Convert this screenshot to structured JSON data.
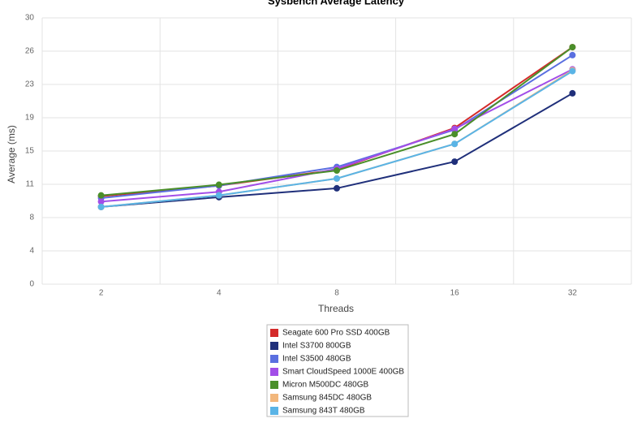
{
  "chart_data": {
    "type": "line",
    "title": "Sysbench Average Latency",
    "x_label": "Threads",
    "y_label": "Average (ms)",
    "categories": [
      "2",
      "4",
      "8",
      "16",
      "32"
    ],
    "ylim": [
      0,
      30
    ],
    "yticks": [
      0,
      {
        "value": 3.75,
        "label": "4"
      },
      {
        "value": 7.5,
        "label": "8"
      },
      {
        "value": 11.25,
        "label": "11"
      },
      15,
      {
        "value": 18.75,
        "label": "19"
      },
      {
        "value": 22.5,
        "label": "23"
      },
      {
        "value": 26.25,
        "label": "26"
      },
      30
    ],
    "grid": true,
    "series": [
      {
        "name": "Seagate 600 Pro SSD 400GB",
        "color": "#d42a2a",
        "values": [
          9.9,
          11.1,
          12.9,
          17.6,
          26.7
        ]
      },
      {
        "name": "Intel S3700 800GB",
        "color": "#1f2f7a",
        "values": [
          8.7,
          9.8,
          10.8,
          13.8,
          21.5
        ]
      },
      {
        "name": "Intel S3500 480GB",
        "color": "#5a6fe0",
        "values": [
          9.7,
          11.1,
          13.2,
          17.4,
          25.8
        ]
      },
      {
        "name": "Smart CloudSpeed 1000E 400GB",
        "color": "#a24ee8",
        "values": [
          9.3,
          10.4,
          13.0,
          17.5,
          24.2
        ]
      },
      {
        "name": "Micron M500DC 480GB",
        "color": "#4a8f2a",
        "values": [
          10.0,
          11.2,
          12.8,
          16.9,
          26.7
        ]
      },
      {
        "name": "Samsung 845DC 480GB",
        "color": "#f2b77c",
        "values": [
          8.7,
          10.0,
          11.9,
          15.8,
          24.1
        ]
      },
      {
        "name": "Samsung 843T 480GB",
        "color": "#5ab4e6",
        "values": [
          8.7,
          10.0,
          11.9,
          15.8,
          24.0
        ]
      }
    ]
  }
}
